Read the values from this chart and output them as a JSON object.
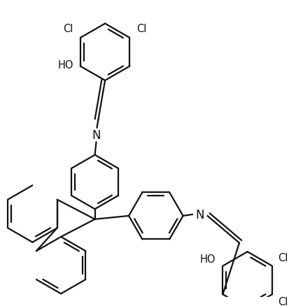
{
  "bg_color": "#ffffff",
  "line_color": "#111111",
  "line_width": 1.6,
  "label_fontsize": 10.5,
  "figsize": [
    4.33,
    4.39
  ],
  "dpi": 100,
  "xlim": [
    0,
    433
  ],
  "ylim": [
    0,
    439
  ]
}
